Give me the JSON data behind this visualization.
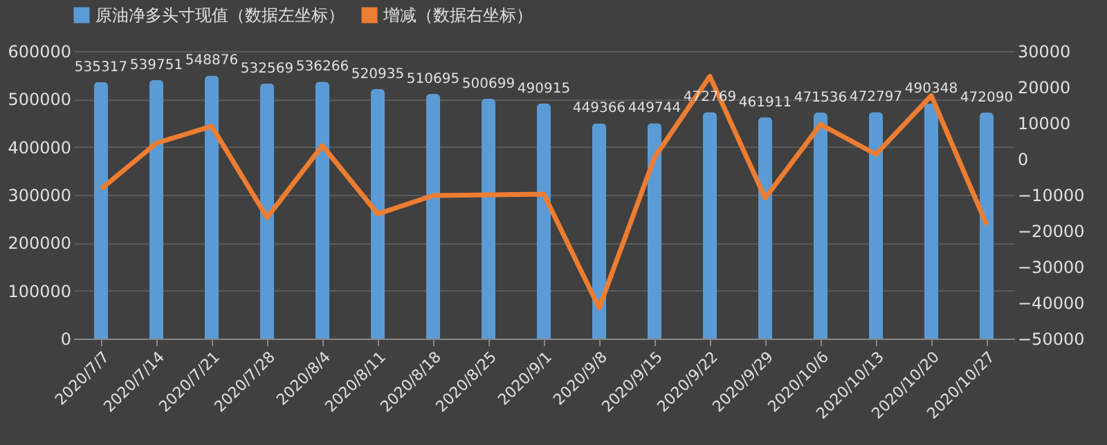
{
  "chart_data": {
    "type": "bar",
    "categories": [
      "2020/7/7",
      "2020/7/14",
      "2020/7/21",
      "2020/7/28",
      "2020/8/4",
      "2020/8/11",
      "2020/8/18",
      "2020/8/25",
      "2020/9/1",
      "2020/9/8",
      "2020/9/15",
      "2020/9/22",
      "2020/9/29",
      "2020/10/6",
      "2020/10/13",
      "2020/10/20",
      "2020/10/27"
    ],
    "series": [
      {
        "name": "原油净多头寸现值（数据左坐标）",
        "color": "#5b9bd5",
        "data_labels": true,
        "values": [
          535317,
          539751,
          548876,
          532569,
          536266,
          520935,
          510695,
          500699,
          490915,
          449366,
          449744,
          472769,
          461911,
          471536,
          472797,
          490348,
          472090
        ]
      },
      {
        "name": "增减（数据右坐标）",
        "type": "line",
        "axis": "y2",
        "color": "#ed7d31",
        "values": [
          -8400,
          4400,
          9100,
          -16300,
          3700,
          -15300,
          -10200,
          -10000,
          -9800,
          -41500,
          400,
          23000,
          -10900,
          9600,
          1300,
          17600,
          -18300
        ]
      }
    ],
    "ylim": [
      0,
      600000
    ],
    "yticks": [
      0,
      100000,
      200000,
      300000,
      400000,
      500000,
      600000
    ],
    "y2lim": [
      -50000,
      30000
    ],
    "y2ticks": [
      -50000,
      -40000,
      -30000,
      -20000,
      -10000,
      0,
      10000,
      20000,
      30000
    ],
    "grid": "y",
    "legend": "top"
  }
}
